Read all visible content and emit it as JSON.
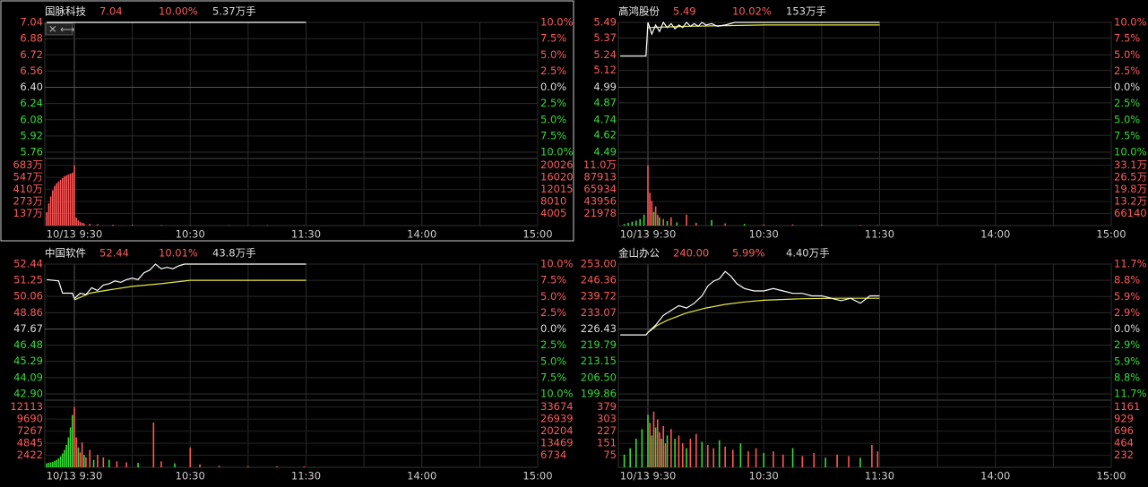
{
  "panels": [
    {
      "name": "国脉科技",
      "price": "7.04",
      "change": "10.00%",
      "volume": "5.37万手",
      "price_lim": [
        5.76,
        7.04
      ],
      "price_ticks": [
        7.04,
        6.88,
        6.72,
        6.56,
        {
          "value": 6.4,
          "label": "6.40"
        },
        6.24,
        6.08,
        5.92,
        5.76
      ],
      "pct_ticks": [
        "10.0%",
        "7.5%",
        "5.0%",
        "2.5%",
        "0.0%",
        "2.5%",
        "5.0%",
        "7.5%",
        "10.0%"
      ],
      "vol_lim": [
        0,
        700
      ],
      "vol_ticks": [
        {
          "value": 683,
          "label": "683万"
        },
        {
          "value": 547,
          "label": "547万"
        },
        {
          "value": 410,
          "label": "410万"
        },
        {
          "value": 273,
          "label": "273万"
        },
        {
          "value": 137,
          "label": "137万"
        }
      ],
      "vol2_ticks": [
        "20026",
        "16020",
        "12015",
        "8010",
        "4005"
      ],
      "times": [
        "10/13 9:30",
        "10:30",
        "11:30",
        "14:00",
        "15:00"
      ],
      "line": {
        "x": [
          -14,
          120
        ],
        "values": [
          7.04,
          7.04
        ]
      },
      "bars": {
        "x": [
          -14,
          -13,
          -12,
          -11,
          -10,
          -9,
          -8,
          -7,
          -6,
          -5,
          -4,
          -3,
          -2,
          -1,
          0,
          1,
          2,
          3,
          4,
          5,
          8,
          12,
          20,
          30,
          45,
          60,
          80,
          100,
          119
        ],
        "values": [
          150,
          250,
          330,
          400,
          450,
          480,
          500,
          520,
          540,
          560,
          570,
          580,
          590,
          600,
          683,
          90,
          60,
          40,
          30,
          25,
          20,
          15,
          10,
          8,
          6,
          5,
          5,
          4,
          4
        ],
        "colors": [
          "#f55",
          "#f55",
          "#f55",
          "#f55",
          "#f55",
          "#f55",
          "#f55",
          "#f55",
          "#f55",
          "#f55",
          "#f55",
          "#f55",
          "#f55",
          "#f55",
          "#f55",
          "#f55",
          "#f55",
          "#f55",
          "#f55",
          "#f55",
          "#f55",
          "#f55",
          "#f55",
          "#f55",
          "#f55",
          "#f55",
          "#f55",
          "#f55",
          "#f55"
        ]
      }
    },
    {
      "name": "高鸿股份",
      "price": "5.49",
      "change": "10.02%",
      "volume": "153万手",
      "price_lim": [
        4.49,
        5.49
      ],
      "price_ticks": [
        5.49,
        5.37,
        5.24,
        5.12,
        4.99,
        4.87,
        4.74,
        4.62,
        4.49
      ],
      "pct_ticks": [
        "10.0%",
        "7.5%",
        "5.0%",
        "2.5%",
        "0.0%",
        "2.5%",
        "5.0%",
        "7.5%",
        "10.0%"
      ],
      "vol_lim": [
        0,
        112600
      ],
      "vol_ticks": [
        {
          "value": 109890,
          "label": "11.0万"
        },
        87913,
        65934,
        43956,
        21978
      ],
      "vol2_ticks": [
        "33.1万",
        "26.5万",
        "19.8万",
        "13.2万",
        "66140"
      ],
      "times": [
        "10/13 9:30",
        "10:30",
        "11:30",
        "14:00",
        "15:00"
      ],
      "line": {
        "x": [
          -14,
          -1,
          0,
          2,
          4,
          6,
          8,
          10,
          12,
          14,
          16,
          18,
          20,
          22,
          24,
          26,
          28,
          30,
          33,
          36,
          40,
          45,
          120
        ],
        "values": [
          5.23,
          5.23,
          5.49,
          5.4,
          5.47,
          5.42,
          5.49,
          5.45,
          5.48,
          5.44,
          5.47,
          5.45,
          5.49,
          5.46,
          5.48,
          5.46,
          5.49,
          5.47,
          5.48,
          5.46,
          5.47,
          5.49,
          5.49
        ]
      },
      "avg": {
        "x": [
          0,
          10,
          20,
          40,
          60,
          120
        ],
        "values": [
          5.45,
          5.455,
          5.46,
          5.465,
          5.47,
          5.47
        ]
      },
      "bars": {
        "x": [
          -12,
          -10,
          -8,
          -6,
          -4,
          -2,
          0,
          1,
          2,
          3,
          4,
          5,
          6,
          8,
          10,
          12,
          15,
          20,
          25,
          33,
          40,
          50,
          60,
          75,
          90,
          110,
          119
        ],
        "values": [
          3000,
          5000,
          7000,
          9000,
          12000,
          20000,
          109890,
          60000,
          45000,
          25000,
          35000,
          20000,
          15000,
          12000,
          8000,
          15000,
          6000,
          20000,
          5000,
          10000,
          4000,
          3000,
          2000,
          2000,
          1500,
          1000,
          1000
        ],
        "colors": [
          "#3d3",
          "#3d3",
          "#3d3",
          "#3d3",
          "#3d3",
          "#3d3",
          "#f55",
          "#f55",
          "#f55",
          "#3d3",
          "#f55",
          "#f55",
          "#3d3",
          "#f55",
          "#3d3",
          "#f55",
          "#3d3",
          "#f55",
          "#f55",
          "#3d3",
          "#f55",
          "#3d3",
          "#f55",
          "#f55",
          "#f55",
          "#f55",
          "#f55"
        ]
      }
    },
    {
      "name": "中国软件",
      "price": "52.44",
      "change": "10.01%",
      "volume": "43.8万手",
      "price_lim": [
        42.9,
        52.44
      ],
      "price_ticks": [
        52.44,
        51.25,
        50.06,
        48.86,
        47.67,
        46.48,
        45.29,
        44.09,
        {
          "value": 42.9,
          "label": "42.90"
        }
      ],
      "pct_ticks": [
        "10.0%",
        "7.5%",
        "5.0%",
        "2.5%",
        "0.0%",
        "2.5%",
        "5.0%",
        "7.5%",
        "10.0%"
      ],
      "vol_lim": [
        0,
        12400
      ],
      "vol_ticks": [
        12113,
        9690,
        7267,
        4845,
        2422
      ],
      "vol2_ticks": [
        "33674",
        "26939",
        "20204",
        "13469",
        "6734"
      ],
      "times": [
        "10/13 9:30",
        "10:30",
        "11:30",
        "14:00",
        "15:00"
      ],
      "line": {
        "x": [
          -14,
          -8,
          -6,
          -1,
          0,
          3,
          6,
          9,
          12,
          15,
          18,
          21,
          24,
          27,
          30,
          33,
          36,
          39,
          42,
          45,
          48,
          51,
          54,
          57,
          60,
          120
        ],
        "values": [
          51.3,
          51.2,
          50.3,
          50.3,
          49.9,
          50.3,
          50.2,
          50.7,
          50.5,
          50.9,
          51.0,
          51.2,
          51.1,
          51.3,
          51.4,
          51.3,
          51.8,
          52.0,
          52.44,
          52.1,
          52.2,
          52.1,
          52.3,
          52.44,
          52.44,
          52.44
        ]
      },
      "avg": {
        "x": [
          0,
          8,
          16,
          30,
          45,
          60,
          120
        ],
        "values": [
          49.8,
          50.3,
          50.5,
          50.8,
          51.0,
          51.25,
          51.25
        ]
      },
      "bars": {
        "x": [
          -14,
          -13,
          -12,
          -11,
          -10,
          -9,
          -8,
          -7,
          -6,
          -5,
          -4,
          -3,
          -2,
          -1,
          0,
          1,
          2,
          3,
          4,
          5,
          6,
          8,
          10,
          12,
          15,
          18,
          22,
          27,
          33,
          41,
          45,
          52,
          60,
          65,
          75,
          90,
          105,
          119
        ],
        "values": [
          800,
          900,
          1000,
          1100,
          1300,
          1500,
          1800,
          2200,
          2800,
          3500,
          4500,
          6000,
          8000,
          10500,
          12113,
          6000,
          4000,
          3000,
          5000,
          2500,
          2000,
          3500,
          1500,
          2500,
          2000,
          1500,
          1200,
          1000,
          900,
          9000,
          1200,
          800,
          4000,
          600,
          300,
          200,
          200,
          200
        ],
        "colors": [
          "#3d3",
          "#3d3",
          "#3d3",
          "#3d3",
          "#3d3",
          "#3d3",
          "#3d3",
          "#3d3",
          "#3d3",
          "#3d3",
          "#3d3",
          "#3d3",
          "#3d3",
          "#3d3",
          "#f55",
          "#f55",
          "#3d3",
          "#f55",
          "#f55",
          "#3d3",
          "#f55",
          "#f55",
          "#3d3",
          "#f55",
          "#f55",
          "#3d3",
          "#f55",
          "#f55",
          "#3d3",
          "#f55",
          "#f55",
          "#3d3",
          "#f55",
          "#f55",
          "#f55",
          "#f55",
          "#f55",
          "#f55"
        ]
      }
    },
    {
      "name": "金山办公",
      "price": "240.00",
      "change": "5.99%",
      "volume": "4.40万手",
      "price_lim": [
        199.86,
        253
      ],
      "price_ticks": [
        {
          "value": 253,
          "label": "253.00"
        },
        246.36,
        239.72,
        233.07,
        226.43,
        219.79,
        213.15,
        {
          "value": 206.5,
          "label": "206.50"
        },
        199.86
      ],
      "pct_ticks": [
        "11.7%",
        "8.8%",
        "5.9%",
        "2.9%",
        "0.0%",
        "2.9%",
        "5.9%",
        "8.8%",
        "11.7%"
      ],
      "vol_lim": [
        0,
        388
      ],
      "vol_ticks": [
        379,
        303,
        227,
        151,
        75
      ],
      "vol2_ticks": [
        "1161",
        "929",
        "696",
        "464",
        "232"
      ],
      "times": [
        "10/13 9:30",
        "10:30",
        "11:30",
        "14:00",
        "15:00"
      ],
      "line": {
        "x": [
          -14,
          -1,
          0,
          4,
          8,
          12,
          16,
          20,
          24,
          28,
          31,
          34,
          37,
          40,
          43,
          46,
          50,
          55,
          60,
          65,
          70,
          75,
          80,
          85,
          90,
          95,
          100,
          105,
          110,
          115,
          120
        ],
        "values": [
          224,
          224,
          225,
          228,
          232,
          234,
          236,
          235,
          237,
          240,
          244,
          246,
          247,
          250,
          248,
          245,
          243,
          242,
          242,
          243,
          242,
          241,
          241,
          240,
          240,
          239,
          238,
          239,
          237,
          240,
          240
        ]
      },
      "avg": {
        "x": [
          0,
          5,
          10,
          20,
          30,
          40,
          50,
          60,
          80,
          100,
          120
        ],
        "values": [
          225,
          228,
          230,
          233,
          235,
          236.5,
          237.5,
          238.2,
          238.8,
          239,
          239
        ]
      },
      "bars": {
        "x": [
          -12,
          -9,
          -6,
          -3,
          0,
          1,
          2,
          3,
          4,
          5,
          6,
          7,
          8,
          9,
          10,
          12,
          14,
          16,
          18,
          20,
          22,
          25,
          28,
          31,
          34,
          37,
          40,
          44,
          48,
          52,
          56,
          60,
          65,
          70,
          75,
          80,
          86,
          92,
          98,
          104,
          110,
          116,
          119
        ],
        "values": [
          80,
          120,
          180,
          240,
          330,
          280,
          200,
          350,
          250,
          300,
          220,
          180,
          260,
          150,
          200,
          240,
          180,
          200,
          150,
          120,
          180,
          210,
          160,
          140,
          120,
          170,
          130,
          110,
          150,
          100,
          120,
          90,
          100,
          80,
          120,
          70,
          90,
          60,
          80,
          70,
          60,
          140,
          100
        ],
        "colors": [
          "#3d3",
          "#3d3",
          "#3d3",
          "#3d3",
          "#3d3",
          "#f55",
          "#3d3",
          "#f55",
          "#3d3",
          "#f55",
          "#f55",
          "#3d3",
          "#f55",
          "#f55",
          "#3d3",
          "#f55",
          "#3d3",
          "#f55",
          "#f55",
          "#3d3",
          "#f55",
          "#f55",
          "#3d3",
          "#f55",
          "#f55",
          "#3d3",
          "#f55",
          "#f55",
          "#3d3",
          "#f55",
          "#f55",
          "#3d3",
          "#f55",
          "#f55",
          "#3d3",
          "#f55",
          "#f55",
          "#3d3",
          "#f55",
          "#f55",
          "#3d3",
          "#f55",
          "#f55"
        ]
      }
    }
  ]
}
